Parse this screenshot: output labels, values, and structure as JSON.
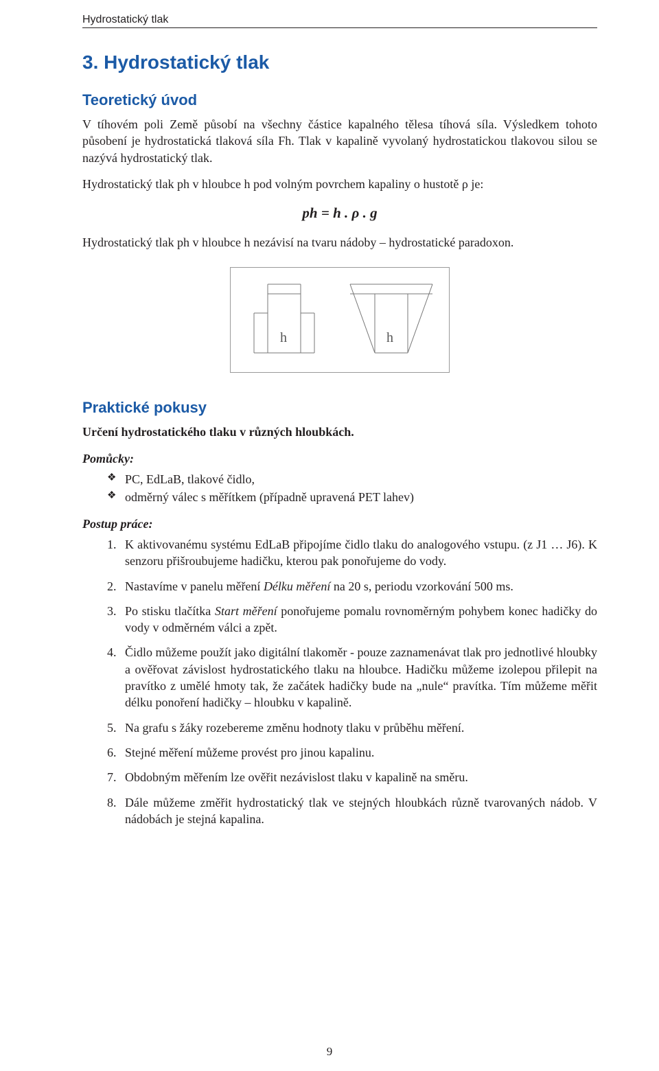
{
  "page": {
    "running_head": "Hydrostatický tlak",
    "chapter_title": "3.   Hydrostatický tlak",
    "page_number": "9"
  },
  "theory": {
    "heading": "Teoretický úvod",
    "para1": "V tíhovém poli Země působí na všechny částice kapalného tělesa tíhová síla. Výsledkem tohoto působení je hydrostatická tlaková síla Fh. Tlak v kapalině vyvolaný hydrostatickou tlakovou silou se nazývá hydrostatický tlak.",
    "para2": "Hydrostatický tlak ph v hloubce h pod volným povrchem kapaliny o hustotě ρ je:",
    "formula": "ph = h . ρ . g",
    "para3": "Hydrostatický tlak ph v hloubce h nezávisí na tvaru nádoby – hydrostatické paradoxon."
  },
  "diagram": {
    "label_left": "h",
    "label_right": "h",
    "stroke": "#777777",
    "line_width": 1
  },
  "practice": {
    "heading": "Praktické pokusy",
    "sub_heading": "Určení hydrostatického tlaku v různých hloubkách.",
    "tools_heading": "Pomůcky:",
    "tools": [
      "PC, EdLaB, tlakové čidlo,",
      "odměrný válec s měřítkem (případně upravená PET lahev)"
    ],
    "procedure_heading": "Postup práce:",
    "steps_html": [
      "K aktivovanému systému EdLaB připojíme čidlo tlaku do analogového vstupu. (z J1 … J6). K senzoru přišroubujeme hadičku, kterou pak ponořujeme do vody.",
      "Nastavíme v panelu měření <em>Délku měření</em> na 20 s, periodu vzorkování 500 ms.",
      "Po stisku tlačítka <em>Start měření</em> ponořujeme pomalu rovnoměrným pohybem konec hadičky do vody v odměrném válci a zpět.",
      "Čidlo můžeme použít jako digitální tlakoměr - pouze zaznamenávat tlak pro jednotlivé hloubky a ověřovat závislost hydrostatického tlaku na hloubce. Hadičku můžeme izolepou přilepit na pravítko z umělé hmoty tak, že začátek hadičky bude na „nule“ pravítka. Tím můžeme měřit délku ponoření hadičky – hloubku v kapalině.",
      "Na grafu s žáky rozebereme změnu hodnoty tlaku v průběhu měření.",
      "Stejné měření můžeme provést pro jinou kapalinu.",
      "Obdobným měřením lze ověřit nezávislost tlaku v kapalině na směru.",
      "Dále můžeme změřit hydrostatický tlak ve stejných hloubkách různě tvarovaných nádob. V nádobách je stejná kapalina."
    ]
  },
  "colors": {
    "heading_blue": "#1b5aa6",
    "body_text": "#231f20",
    "background": "#ffffff"
  },
  "typography": {
    "heading_font": "Segoe UI / Myriad Pro",
    "body_font": "Times New Roman",
    "chapter_title_size_pt": 21,
    "section_title_size_pt": 16,
    "body_size_pt": 13
  }
}
